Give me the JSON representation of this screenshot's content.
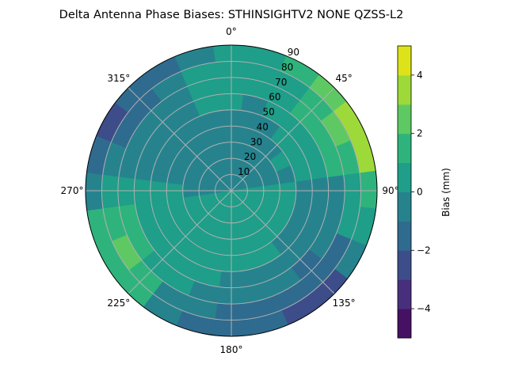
{
  "chart_data": {
    "type": "heatmap",
    "projection": "polar",
    "title": "Delta Antenna Phase Biases: STHINSIGHTV2    NONE QZSS-L2",
    "theta_direction": "clockwise",
    "theta_zero": "top",
    "theta_tick_labels": [
      "0°",
      "45°",
      "90°",
      "135°",
      "180°",
      "225°",
      "270°",
      "315°"
    ],
    "theta_ticks": [
      0,
      45,
      90,
      135,
      180,
      225,
      270,
      315
    ],
    "r_ticks": [
      10,
      20,
      30,
      40,
      50,
      60,
      70,
      80,
      90
    ],
    "r_tick_labels": [
      "10",
      "20",
      "30",
      "40",
      "50",
      "60",
      "70",
      "80",
      "90"
    ],
    "rlim": [
      0,
      90
    ],
    "grid": true,
    "colorbar": {
      "label": "Bias (mm)",
      "levels": [
        -5,
        -4,
        -3,
        -2,
        -1,
        0,
        1,
        2,
        3,
        4,
        5
      ],
      "ticks": [
        -4,
        -2,
        0,
        2,
        4
      ],
      "tick_labels": [
        "−4",
        "−2",
        "0",
        "2",
        "4"
      ],
      "colormap": "viridis",
      "colors": [
        "#461163",
        "#482f7d",
        "#3d4d8a",
        "#2f6b8e",
        "#26838e",
        "#1f9e89",
        "#2fb37c",
        "#5ec962",
        "#9ed93a",
        "#dde318"
      ]
    },
    "azimuths": [
      0,
      15,
      30,
      45,
      60,
      75,
      90,
      105,
      120,
      135,
      150,
      165,
      180,
      195,
      210,
      225,
      240,
      255,
      270,
      285,
      300,
      315,
      330,
      345
    ],
    "radii": [
      5,
      15,
      25,
      35,
      45,
      55,
      65,
      75,
      85
    ],
    "values": [
      [
        -0.5,
        -0.5,
        -0.5,
        -0.5,
        -0.5,
        0.5,
        0.5,
        0.5,
        0.5
      ],
      [
        -0.5,
        -0.5,
        -0.5,
        -0.5,
        -0.5,
        -0.5,
        0.5,
        0.5,
        0.5
      ],
      [
        -0.5,
        -0.5,
        -0.5,
        -0.5,
        -0.5,
        0.5,
        0.5,
        0.5,
        1.5
      ],
      [
        -0.5,
        -0.5,
        -0.5,
        -0.5,
        0.5,
        0.5,
        1.5,
        1.5,
        2.5
      ],
      [
        -0.5,
        -0.5,
        -0.5,
        0.5,
        0.5,
        0.5,
        1.5,
        2.5,
        3.5
      ],
      [
        -0.5,
        -0.5,
        -0.5,
        -0.5,
        0.5,
        0.5,
        1.5,
        1.5,
        3.5
      ],
      [
        0.5,
        0.5,
        0.5,
        0.5,
        -0.5,
        -0.5,
        -0.5,
        0.5,
        1.5
      ],
      [
        0.5,
        0.5,
        0.5,
        0.5,
        -0.5,
        -0.5,
        -0.5,
        0.5,
        0.5
      ],
      [
        0.5,
        0.5,
        0.5,
        0.5,
        -0.5,
        -0.5,
        -0.5,
        -1.5,
        -0.5
      ],
      [
        0.5,
        0.5,
        0.5,
        0.5,
        -0.5,
        -0.5,
        -1.5,
        -1.5,
        -2.5
      ],
      [
        0.5,
        0.5,
        0.5,
        0.5,
        0.5,
        -0.5,
        -0.5,
        -1.5,
        -2.5
      ],
      [
        0.5,
        0.5,
        0.5,
        0.5,
        0.5,
        -0.5,
        -0.5,
        -1.5,
        -1.5
      ],
      [
        0.5,
        0.5,
        0.5,
        0.5,
        0.5,
        -0.5,
        -0.5,
        -1.5,
        -1.5
      ],
      [
        0.5,
        0.5,
        0.5,
        0.5,
        0.5,
        0.5,
        -0.5,
        -0.5,
        -1.5
      ],
      [
        0.5,
        0.5,
        0.5,
        0.5,
        0.5,
        0.5,
        0.5,
        -0.5,
        -0.5
      ],
      [
        0.5,
        0.5,
        0.5,
        0.5,
        0.5,
        0.5,
        0.5,
        1.5,
        1.5
      ],
      [
        0.5,
        0.5,
        0.5,
        0.5,
        0.5,
        0.5,
        1.5,
        2.5,
        1.5
      ],
      [
        0.5,
        0.5,
        0.5,
        0.5,
        0.5,
        0.5,
        1.5,
        1.5,
        1.5
      ],
      [
        -0.5,
        -0.5,
        -0.5,
        0.5,
        0.5,
        0.5,
        0.5,
        0.5,
        -0.5
      ],
      [
        -0.5,
        -0.5,
        -0.5,
        -0.5,
        -0.5,
        -0.5,
        -0.5,
        -0.5,
        -1.5
      ],
      [
        -0.5,
        -0.5,
        -0.5,
        -0.5,
        -0.5,
        -0.5,
        -0.5,
        -1.5,
        -2.5
      ],
      [
        -0.5,
        -0.5,
        -0.5,
        -0.5,
        -0.5,
        -0.5,
        -0.5,
        -1.5,
        -1.5
      ],
      [
        -0.5,
        -0.5,
        -0.5,
        -0.5,
        -0.5,
        -0.5,
        -0.5,
        -0.5,
        -1.5
      ],
      [
        -0.5,
        -0.5,
        -0.5,
        -0.5,
        -0.5,
        0.5,
        0.5,
        0.5,
        -0.5
      ]
    ]
  }
}
